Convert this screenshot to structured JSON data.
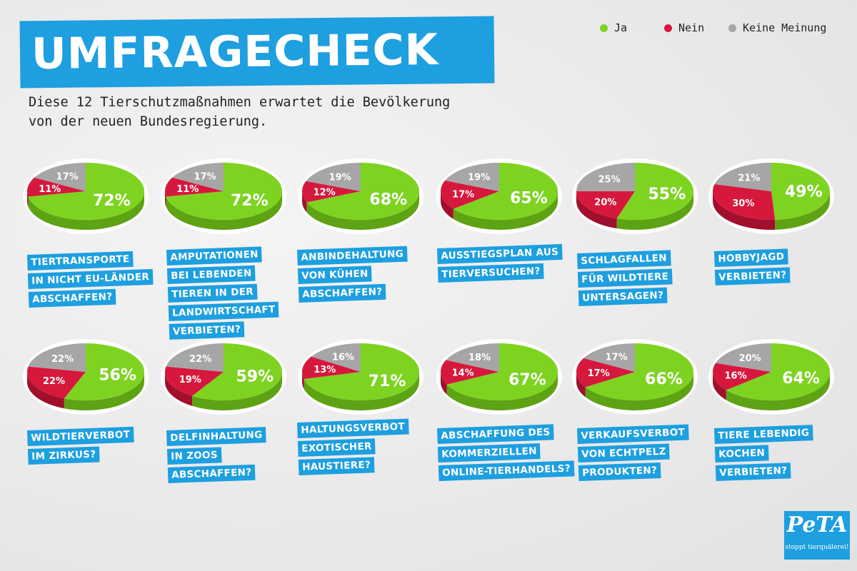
{
  "title": "UMFRAGECHECK",
  "subtitle_lines": [
    "Diese 12 Tierschutzmaßnahmen erwartet die Bevölkerung",
    "von der neuen Bundesregierung."
  ],
  "legend": [
    {
      "label": "Ja",
      "color": "#7ed321"
    },
    {
      "label": "Nein",
      "color": "#d7183d"
    },
    {
      "label": "Keine Meinung",
      "color": "#a6a6a6"
    }
  ],
  "logo": {
    "word": "PeTA",
    "tagline": "stoppt tierquälerei!"
  },
  "chart_data": {
    "type": "pie",
    "categories": [
      "Ja",
      "Nein",
      "Keine Meinung"
    ],
    "colors": [
      "#7ed321",
      "#d7183d",
      "#a6a6a6"
    ],
    "charts": [
      {
        "question": [
          "TIERTRANSPORTE",
          "IN NICHT EU-LÄNDER",
          "ABSCHAFFEN?"
        ],
        "values": [
          72,
          11,
          17
        ]
      },
      {
        "question": [
          "AMPUTATIONEN",
          "BEI LEBENDEN",
          "TIEREN IN DER",
          "LANDWIRTSCHAFT",
          "VERBIETEN?"
        ],
        "values": [
          72,
          11,
          17
        ]
      },
      {
        "question": [
          "ANBINDEHALTUNG",
          "VON KÜHEN",
          "ABSCHAFFEN?"
        ],
        "values": [
          68,
          12,
          19
        ]
      },
      {
        "question": [
          "AUSSTIEGSPLAN AUS",
          "TIERVERSUCHEN?"
        ],
        "values": [
          65,
          17,
          19
        ]
      },
      {
        "question": [
          "SCHLAGFALLEN",
          "FÜR WILDTIERE",
          "UNTERSAGEN?"
        ],
        "values": [
          55,
          20,
          25
        ]
      },
      {
        "question": [
          "HOBBYJAGD",
          "VERBIETEN?"
        ],
        "values": [
          49,
          30,
          21
        ]
      },
      {
        "question": [
          "WILDTIERVERBOT",
          "IM ZIRKUS?"
        ],
        "values": [
          56,
          22,
          22
        ]
      },
      {
        "question": [
          "DELFINHALTUNG",
          "IN ZOOS",
          "ABSCHAFFEN?"
        ],
        "values": [
          59,
          19,
          22
        ]
      },
      {
        "question": [
          "HALTUNGSVERBOT",
          "EXOTISCHER",
          "HAUSTIERE?"
        ],
        "values": [
          71,
          13,
          16
        ]
      },
      {
        "question": [
          "ABSCHAFFUNG DES",
          "KOMMERZIELLEN",
          "ONLINE-TIERHANDELS?"
        ],
        "values": [
          67,
          14,
          18
        ]
      },
      {
        "question": [
          "VERKAUFSVERBOT",
          "VON ECHTPELZ",
          "PRODUKTEN?"
        ],
        "values": [
          66,
          17,
          17
        ]
      },
      {
        "question": [
          "TIERE LEBENDIG",
          "KOCHEN",
          "VERBIETEN?"
        ],
        "values": [
          64,
          16,
          20
        ]
      }
    ]
  }
}
